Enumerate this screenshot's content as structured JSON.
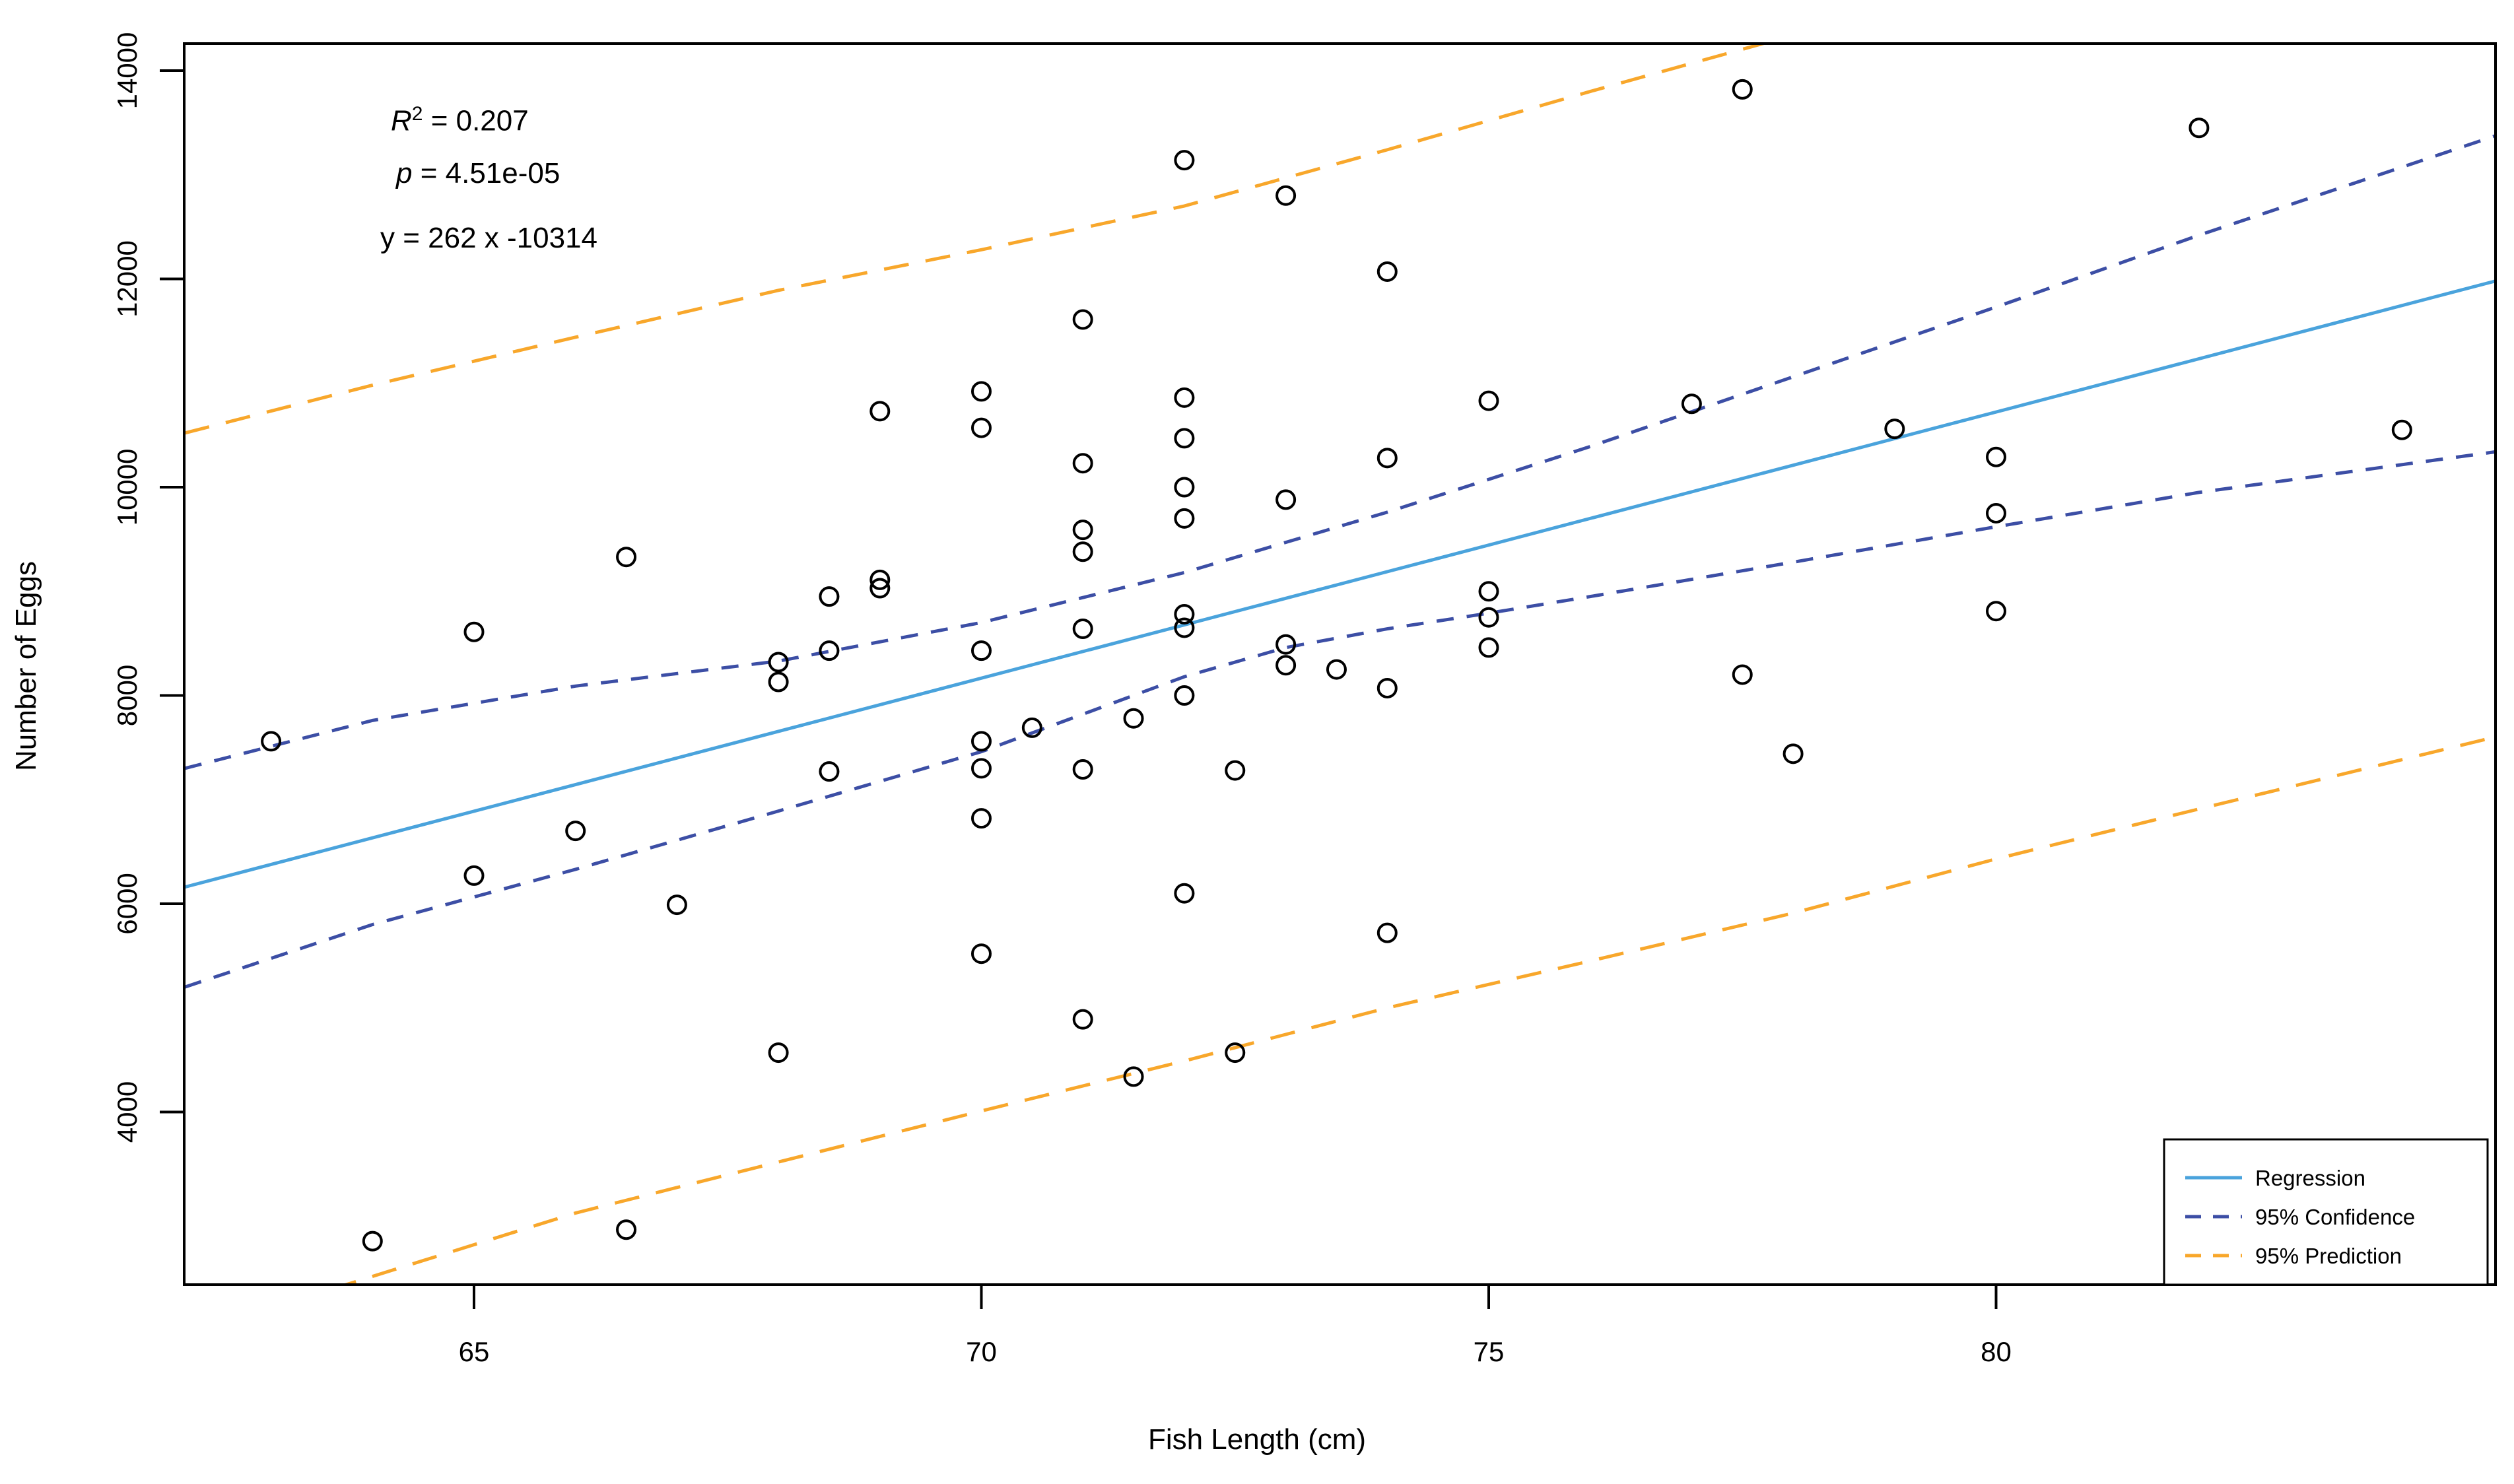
{
  "chart_data": {
    "type": "scatter",
    "title": "",
    "xlabel": "Fish Length (cm)",
    "ylabel": "Number of Eggs",
    "x_ticks": [
      65,
      70,
      75,
      80
    ],
    "y_ticks": [
      4000,
      6000,
      8000,
      10000,
      12000,
      14000
    ],
    "xlim": [
      62.15,
      85.0
    ],
    "ylim": [
      2330,
      14260
    ],
    "grid": "off",
    "legend_position": "bottom-right",
    "annotation": {
      "r2_var": "R",
      "r2_sup": "2",
      "r2_rest": " = 0.207",
      "p_var": "p",
      "p_rest": " = 4.51e-05",
      "equation": "y = 262 x -10314"
    },
    "points": [
      [
        63,
        7560
      ],
      [
        64,
        2760
      ],
      [
        65,
        8610
      ],
      [
        65,
        6270
      ],
      [
        66,
        6700
      ],
      [
        66.5,
        9330
      ],
      [
        66.5,
        2870
      ],
      [
        67,
        5990
      ],
      [
        68,
        8320
      ],
      [
        68,
        8130
      ],
      [
        68,
        4570
      ],
      [
        68.5,
        8950
      ],
      [
        68.5,
        8430
      ],
      [
        68.5,
        7270
      ],
      [
        69,
        10730
      ],
      [
        69,
        9110
      ],
      [
        69,
        9030
      ],
      [
        70,
        10920
      ],
      [
        70,
        10570
      ],
      [
        70,
        8430
      ],
      [
        70,
        7560
      ],
      [
        70,
        7300
      ],
      [
        70,
        6820
      ],
      [
        70,
        5520
      ],
      [
        70.5,
        7690
      ],
      [
        71,
        11610
      ],
      [
        71,
        10230
      ],
      [
        71,
        9590
      ],
      [
        71,
        9380
      ],
      [
        71,
        8640
      ],
      [
        71,
        7290
      ],
      [
        71,
        4890
      ],
      [
        71.5,
        7780
      ],
      [
        71.5,
        4340
      ],
      [
        72,
        13140
      ],
      [
        72,
        10860
      ],
      [
        72,
        10470
      ],
      [
        72,
        10000
      ],
      [
        72,
        9700
      ],
      [
        72,
        8780
      ],
      [
        72,
        8650
      ],
      [
        72,
        8000
      ],
      [
        72,
        6100
      ],
      [
        72.5,
        7280
      ],
      [
        72.5,
        4570
      ],
      [
        73,
        12800
      ],
      [
        73,
        9880
      ],
      [
        73,
        8490
      ],
      [
        73,
        8290
      ],
      [
        73.5,
        8250
      ],
      [
        74,
        12070
      ],
      [
        74,
        10280
      ],
      [
        74,
        8070
      ],
      [
        74,
        5720
      ],
      [
        75,
        10830
      ],
      [
        75,
        9000
      ],
      [
        75,
        8750
      ],
      [
        75,
        8460
      ],
      [
        77,
        10800
      ],
      [
        77.5,
        13820
      ],
      [
        77.5,
        8200
      ],
      [
        78,
        7440
      ],
      [
        79,
        10560
      ],
      [
        80,
        10290
      ],
      [
        80,
        9750
      ],
      [
        80,
        8810
      ],
      [
        82,
        13450
      ],
      [
        84,
        10550
      ]
    ],
    "series": [
      {
        "name": "Regression",
        "style": "solid",
        "points": [
          [
            62.15,
            6160
          ],
          [
            85.0,
            12000
          ]
        ]
      },
      {
        "name": "95% Confidence upper",
        "style": "dashed",
        "points": [
          [
            62.15,
            7300
          ],
          [
            64,
            7760
          ],
          [
            66,
            8090
          ],
          [
            68,
            8330
          ],
          [
            70,
            8700
          ],
          [
            72,
            9180
          ],
          [
            74,
            9760
          ],
          [
            76,
            10390
          ],
          [
            78,
            11060
          ],
          [
            80,
            11730
          ],
          [
            82,
            12420
          ],
          [
            85,
            13400
          ]
        ]
      },
      {
        "name": "95% Confidence lower",
        "style": "dashed",
        "points": [
          [
            62.15,
            5200
          ],
          [
            64,
            5800
          ],
          [
            66,
            6330
          ],
          [
            68,
            6890
          ],
          [
            70,
            7460
          ],
          [
            72,
            8180
          ],
          [
            73,
            8460
          ],
          [
            74,
            8640
          ],
          [
            75,
            8790
          ],
          [
            76,
            8950
          ],
          [
            78,
            9280
          ],
          [
            80,
            9620
          ],
          [
            82,
            9950
          ],
          [
            85,
            10350
          ]
        ]
      },
      {
        "name": "95% Prediction upper",
        "style": "dashed",
        "points": [
          [
            62.15,
            10520
          ],
          [
            64,
            10980
          ],
          [
            66,
            11440
          ],
          [
            68,
            11890
          ],
          [
            70,
            12280
          ],
          [
            72,
            12700
          ],
          [
            74,
            13240
          ],
          [
            76,
            13800
          ],
          [
            77.85,
            14300
          ]
        ]
      },
      {
        "name": "95% Prediction lower",
        "style": "dashed",
        "points": [
          [
            63.6,
            2300
          ],
          [
            66,
            3030
          ],
          [
            68,
            3520
          ],
          [
            70,
            4010
          ],
          [
            72,
            4490
          ],
          [
            74,
            5000
          ],
          [
            76,
            5450
          ],
          [
            78,
            5910
          ],
          [
            80,
            6430
          ],
          [
            82,
            6910
          ],
          [
            85,
            7620
          ]
        ]
      }
    ],
    "legend": [
      {
        "label": "Regression",
        "color": "#4aa3dc",
        "dash": "solid"
      },
      {
        "label": "95% Confidence",
        "color": "#3c4ea5",
        "dash": "dashed"
      },
      {
        "label": "95% Prediction",
        "color": "#f8a72b",
        "dash": "dashed"
      }
    ],
    "colors": {
      "regression": "#4aa3dc",
      "confidence": "#3c4ea5",
      "prediction": "#f8a72b",
      "points": "#000000",
      "axis": "#000000"
    }
  }
}
